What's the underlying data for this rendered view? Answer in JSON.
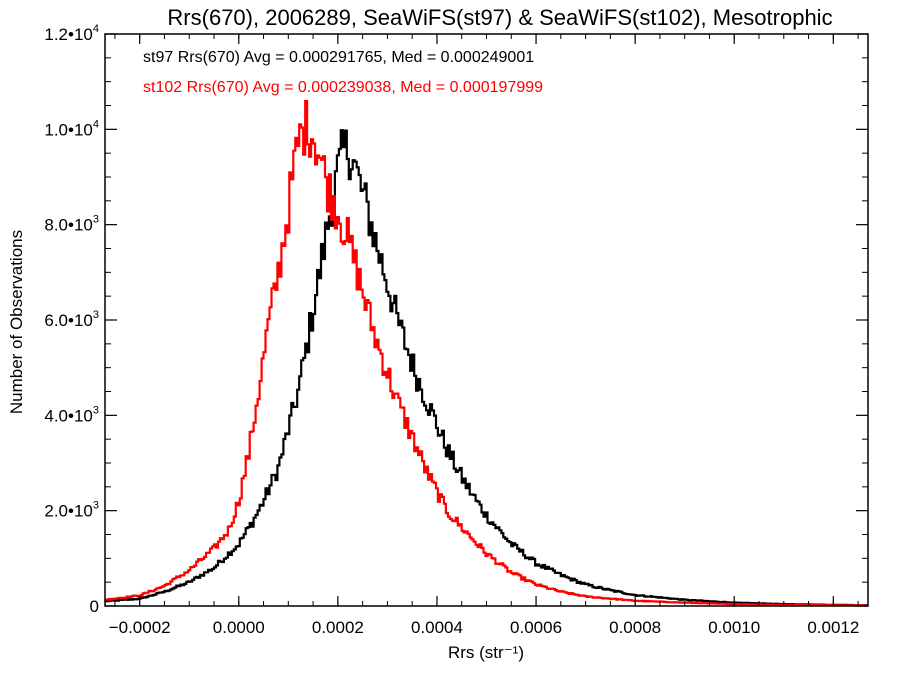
{
  "chart_data": {
    "type": "histogram-step",
    "title": "Rrs(670), 2006289, SeaWiFS(st97) & SeaWiFS(st102), Mesotrophic",
    "xlabel": "Rrs (str⁻¹)",
    "ylabel": "Number of Observations",
    "xlim": [
      -0.00027,
      0.00127
    ],
    "ylim": [
      0,
      12000
    ],
    "x_ticks": [
      -0.0002,
      0.0,
      0.0002,
      0.0004,
      0.0006,
      0.0008,
      0.001,
      0.0012
    ],
    "x_tick_labels": [
      "−0.0002",
      "0.0000",
      "0.0002",
      "0.0004",
      "0.0006",
      "0.0008",
      "0.0010",
      "0.0012"
    ],
    "y_ticks": [
      0,
      2000,
      4000,
      6000,
      8000,
      10000,
      12000
    ],
    "y_tick_labels": [
      {
        "mant": "0",
        "exp": ""
      },
      {
        "mant": "2.0•10",
        "exp": "3"
      },
      {
        "mant": "4.0•10",
        "exp": "3"
      },
      {
        "mant": "6.0•10",
        "exp": "3"
      },
      {
        "mant": "8.0•10",
        "exp": "3"
      },
      {
        "mant": "1.0•10",
        "exp": "4"
      },
      {
        "mant": "1.2•10",
        "exp": "4"
      }
    ],
    "legend": [
      {
        "text": "st97 Rrs(670) Avg = 0.000291765, Med = 0.000249001",
        "color": "#000000"
      },
      {
        "text": "st102 Rrs(670) Avg = 0.000239038, Med = 0.000197999",
        "color": "#ff0000"
      }
    ],
    "legend_placement": "top-left",
    "series": [
      {
        "color": "#000000",
        "points": [
          [
            -0.00027,
            100
          ],
          [
            -0.0002,
            150
          ],
          [
            -0.00015,
            300
          ],
          [
            -0.0001,
            500
          ],
          [
            -5e-05,
            800
          ],
          [
            0.0,
            1300
          ],
          [
            3e-05,
            1800
          ],
          [
            5e-05,
            2200
          ],
          [
            8e-05,
            2900
          ],
          [
            0.0001,
            3700
          ],
          [
            0.00012,
            4500
          ],
          [
            0.00014,
            5600
          ],
          [
            0.00016,
            6800
          ],
          [
            0.00018,
            8000
          ],
          [
            0.00019,
            8600
          ],
          [
            0.0002,
            9100
          ],
          [
            0.00021,
            9500
          ],
          [
            0.00022,
            9600
          ],
          [
            0.00023,
            9400
          ],
          [
            0.00024,
            9000
          ],
          [
            0.00026,
            8300
          ],
          [
            0.00028,
            7500
          ],
          [
            0.0003,
            6800
          ],
          [
            0.00032,
            6000
          ],
          [
            0.00034,
            5400
          ],
          [
            0.00036,
            4800
          ],
          [
            0.00038,
            4300
          ],
          [
            0.0004,
            3800
          ],
          [
            0.00042,
            3300
          ],
          [
            0.00045,
            2700
          ],
          [
            0.00048,
            2200
          ],
          [
            0.0005,
            1900
          ],
          [
            0.00055,
            1300
          ],
          [
            0.0006,
            900
          ],
          [
            0.00065,
            650
          ],
          [
            0.0007,
            450
          ],
          [
            0.00075,
            330
          ],
          [
            0.0008,
            230
          ],
          [
            0.0009,
            130
          ],
          [
            0.001,
            70
          ],
          [
            0.0011,
            40
          ],
          [
            0.0012,
            25
          ],
          [
            0.00127,
            15
          ]
        ]
      },
      {
        "color": "#ff0000",
        "points": [
          [
            -0.00027,
            130
          ],
          [
            -0.0002,
            220
          ],
          [
            -0.00015,
            420
          ],
          [
            -0.0001,
            750
          ],
          [
            -5e-05,
            1200
          ],
          [
            -2e-05,
            1600
          ],
          [
            0.0,
            2200
          ],
          [
            2e-05,
            3200
          ],
          [
            4e-05,
            4500
          ],
          [
            6e-05,
            5900
          ],
          [
            8e-05,
            7000
          ],
          [
            0.0001,
            8300
          ],
          [
            0.00011,
            9100
          ],
          [
            0.00012,
            9700
          ],
          [
            0.00013,
            10000
          ],
          [
            0.00014,
            10100
          ],
          [
            0.00015,
            9900
          ],
          [
            0.00016,
            9600
          ],
          [
            0.00017,
            9200
          ],
          [
            0.00018,
            8800
          ],
          [
            0.0002,
            8300
          ],
          [
            0.00022,
            7700
          ],
          [
            0.00024,
            7000
          ],
          [
            0.00026,
            6200
          ],
          [
            0.00028,
            5500
          ],
          [
            0.0003,
            4900
          ],
          [
            0.00032,
            4300
          ],
          [
            0.00034,
            3800
          ],
          [
            0.00036,
            3300
          ],
          [
            0.00038,
            2800
          ],
          [
            0.0004,
            2400
          ],
          [
            0.00042,
            2000
          ],
          [
            0.00045,
            1650
          ],
          [
            0.0005,
            1100
          ],
          [
            0.00055,
            700
          ],
          [
            0.0006,
            450
          ],
          [
            0.00065,
            300
          ],
          [
            0.0007,
            200
          ],
          [
            0.0008,
            110
          ],
          [
            0.0009,
            70
          ],
          [
            0.001,
            40
          ],
          [
            0.0011,
            25
          ],
          [
            0.0012,
            15
          ],
          [
            0.00127,
            10
          ]
        ]
      }
    ]
  }
}
